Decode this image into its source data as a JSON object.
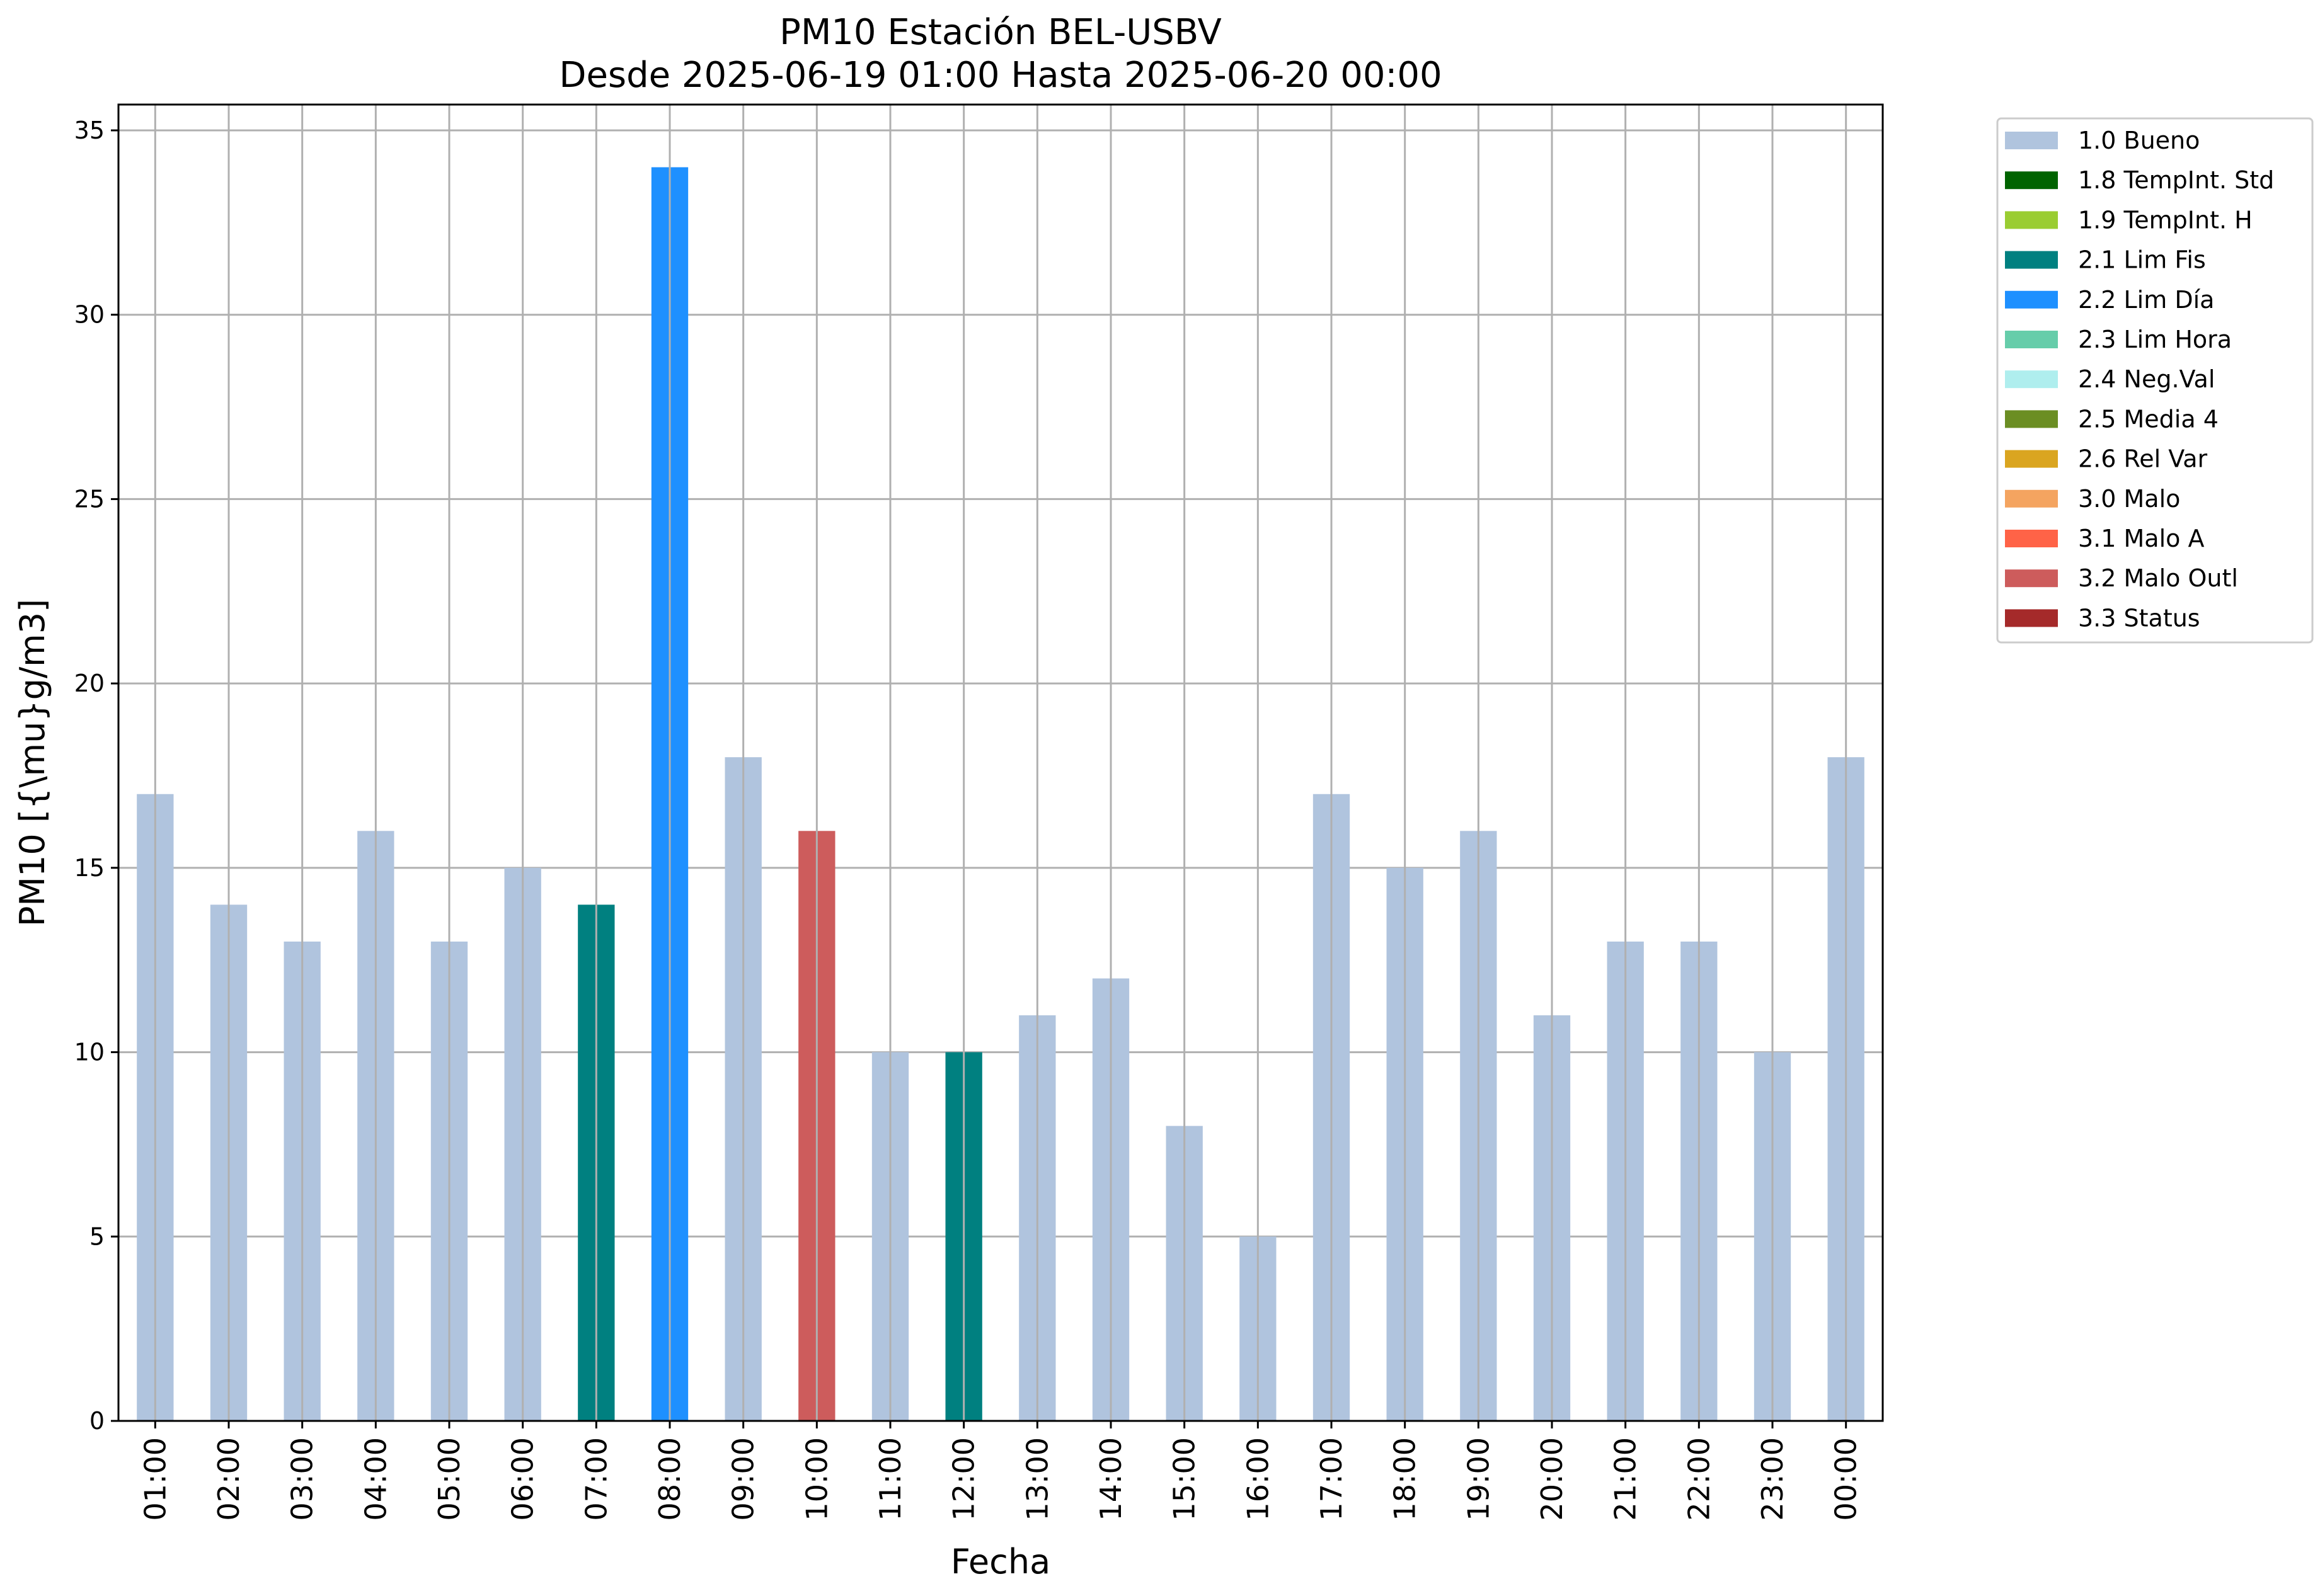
{
  "chart_data": {
    "type": "bar",
    "title": "PM10 Estación BEL-USBV",
    "subtitle": "Desde 2025-06-19 01:00 Hasta 2025-06-20 00:00",
    "xlabel": "Fecha",
    "ylabel": "PM10 [{\\mu}g/m3]",
    "ylim": [
      0,
      35.7
    ],
    "yticks": [
      0,
      5,
      10,
      15,
      20,
      25,
      30,
      35
    ],
    "grid": true,
    "legend_position": "outside-top-right",
    "categories": [
      "01:00",
      "02:00",
      "03:00",
      "04:00",
      "05:00",
      "06:00",
      "07:00",
      "08:00",
      "09:00",
      "10:00",
      "11:00",
      "12:00",
      "13:00",
      "14:00",
      "15:00",
      "16:00",
      "17:00",
      "18:00",
      "19:00",
      "20:00",
      "21:00",
      "22:00",
      "23:00",
      "00:00"
    ],
    "values": [
      17,
      14,
      13,
      16,
      13,
      15,
      14,
      34,
      18,
      16,
      10,
      10,
      11,
      12,
      8,
      5,
      17,
      15,
      16,
      11,
      13,
      13,
      10,
      18
    ],
    "flags": [
      "1.0 Bueno",
      "1.0 Bueno",
      "1.0 Bueno",
      "1.0 Bueno",
      "1.0 Bueno",
      "1.0 Bueno",
      "2.1 Lim Fis",
      "2.2 Lim Día",
      "1.0 Bueno",
      "3.2 Malo Outl",
      "1.0 Bueno",
      "2.1 Lim Fis",
      "1.0 Bueno",
      "1.0 Bueno",
      "1.0 Bueno",
      "1.0 Bueno",
      "1.0 Bueno",
      "1.0 Bueno",
      "1.0 Bueno",
      "1.0 Bueno",
      "1.0 Bueno",
      "1.0 Bueno",
      "1.0 Bueno",
      "1.0 Bueno"
    ],
    "legend": [
      {
        "label": "1.0 Bueno",
        "color": "#b0c4de"
      },
      {
        "label": "1.8 TempInt. Std",
        "color": "#006400"
      },
      {
        "label": "1.9 TempInt. H",
        "color": "#9acd32"
      },
      {
        "label": "2.1 Lim Fis",
        "color": "#008080"
      },
      {
        "label": "2.2 Lim Día",
        "color": "#1e90ff"
      },
      {
        "label": "2.3 Lim Hora",
        "color": "#66cdaa"
      },
      {
        "label": "2.4 Neg.Val",
        "color": "#afeeee"
      },
      {
        "label": "2.5 Media 4",
        "color": "#6b8e23"
      },
      {
        "label": "2.6 Rel Var",
        "color": "#daa520"
      },
      {
        "label": "3.0 Malo",
        "color": "#f4a460"
      },
      {
        "label": "3.1 Malo A",
        "color": "#ff6347"
      },
      {
        "label": "3.2 Malo Outl",
        "color": "#cd5c5c"
      },
      {
        "label": "3.3 Status",
        "color": "#a52a2a"
      }
    ]
  }
}
